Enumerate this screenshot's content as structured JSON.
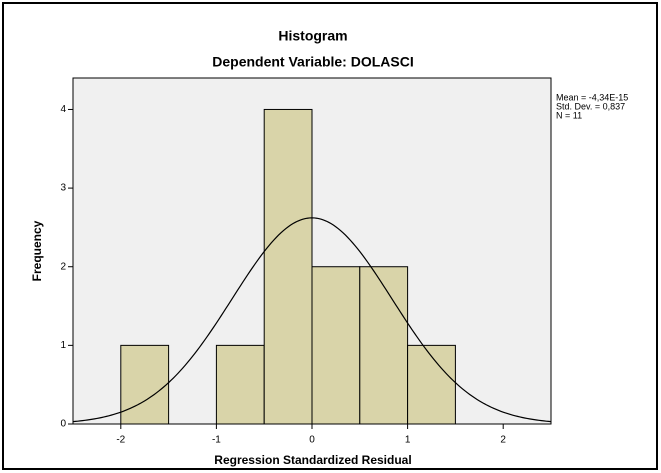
{
  "chart_data": {
    "type": "histogram",
    "title": "Histogram",
    "subtitle": "Dependent Variable: DOLASCI",
    "xlabel": "Regression Standardized Residual",
    "ylabel": "Frequency",
    "bins": [
      -2,
      -1.5,
      -1,
      -0.5,
      0,
      0.5,
      1,
      1.5
    ],
    "values": [
      1,
      0,
      1,
      4,
      2,
      2,
      1
    ],
    "color": "#d9d4a9",
    "background": "#f0f0f0",
    "xlim": [
      -2.5,
      2.5
    ],
    "xticks": [
      -2,
      -1,
      0,
      1,
      2
    ],
    "ylim": [
      0,
      4.4
    ],
    "yticks": [
      0,
      1,
      2,
      3,
      4
    ],
    "stats": [
      {
        "value": -4.34e-15,
        "label": "Mean = -4,34E-15"
      },
      {
        "value": 0.837,
        "label": "Std. Dev. = 0,837"
      },
      {
        "value": 11,
        "label": "N = 11"
      }
    ]
  }
}
